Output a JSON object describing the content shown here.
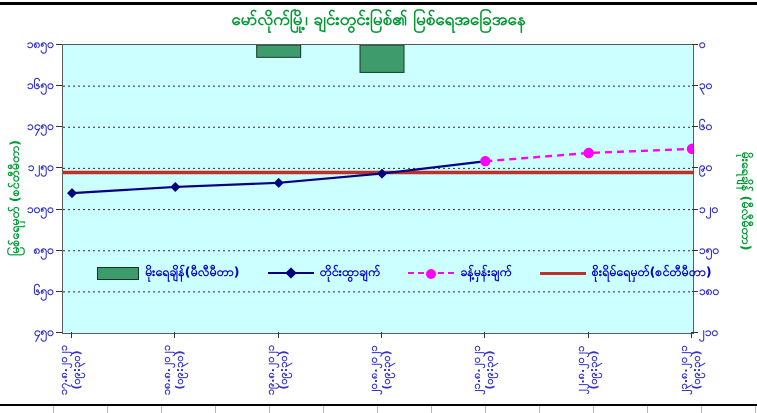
{
  "title": "မော်လိုက်မြို့၊ ချင်းတွင်းမြစ်၏ မြစ်ရေအခြေအနေ",
  "colors": {
    "title_green": "#009933",
    "axis_text_blue": "#3333CC",
    "legend_text_blue": "#0000CC",
    "plot_bg": "#CCFFFF",
    "grid": "#2e2e2e",
    "measured_navy": "#000080",
    "forecast_magenta": "#FF00FF",
    "danger_red": "#C03028",
    "rain_green": "#3E9B6B",
    "axis_line": "#5a5a5a"
  },
  "legend": [
    {
      "id": "rainfall",
      "label": "မိုးရေချိန်(မီလီမီတာ)",
      "swatch": "bar"
    },
    {
      "id": "measured",
      "label": "တိုင်းထွာချက်",
      "swatch": "line-diamond"
    },
    {
      "id": "forecast",
      "label": "ခန့်မှန်းချက်",
      "swatch": "dash-circle"
    },
    {
      "id": "danger",
      "label": "စိုးရိမ်ရေမှတ်(စင်တီမီတာ)",
      "swatch": "line"
    }
  ],
  "chart_data": {
    "type": "combo",
    "title": "မော်လိုက်မြို့၊ ချင်းတွင်းမြစ်၏ မြစ်ရေအခြေအနေ",
    "categories": [
      "17.8.2021 (09:30)",
      "18.8.2021 (09:30)",
      "19.8.2021 (09:30)",
      "20.8.2021 (09:30)",
      "21.8.2021 (09:30)",
      "22.8.2021 (09:30)",
      "23.8.2021 (09:30)"
    ],
    "categories_display": [
      {
        "date": "၁၇.၈.၂၀၂၁",
        "time": "(၀၉:၃၀)"
      },
      {
        "date": "၁၈.၈.၂၀၂၁",
        "time": "(၀၉:၃၀)"
      },
      {
        "date": "၁၉.၈.၂၀၂၁",
        "time": "(၀၉:၃၀)"
      },
      {
        "date": "၂၀.၈.၂၀၂၁",
        "time": "(၀၉:၃၀)"
      },
      {
        "date": "၂၁.၈.၂၀၂၁",
        "time": "(၀၉:၃၀)"
      },
      {
        "date": "၂၂.၈.၂၀၂၁",
        "time": "(၀၉:၃၀)"
      },
      {
        "date": "၂၃.၈.၂၀၂၁",
        "time": "(၀၉:၃၀)"
      }
    ],
    "left_axis": {
      "label": "မြစ်ရေမှတ် (စင်တီမီတာ)",
      "min": 450,
      "max": 1850,
      "step": 200,
      "tick_values": [
        1850,
        1650,
        1450,
        1250,
        1050,
        850,
        650,
        450
      ],
      "tick_labels": [
        "၁၈၅၀",
        "၁၆၅၀",
        "၁၄၅၀",
        "၁၂၅၀",
        "၁၀၅၀",
        "၈၅၀",
        "၆၅၀",
        "၄၅၀"
      ],
      "grid": "dashed"
    },
    "right_axis": {
      "label": "မိုးရေချိန် (မီလီမီတာ)",
      "min": 0,
      "max": 210,
      "step": 30,
      "direction": "down",
      "tick_values": [
        0,
        30,
        60,
        90,
        120,
        150,
        180,
        210
      ],
      "tick_labels": [
        "၀",
        "၃၀",
        "၆၀",
        "၉၀",
        "၁၂၀",
        "၁၅၀",
        "၁၈၀",
        "၂၁၀"
      ]
    },
    "series": [
      {
        "id": "rainfall",
        "name": "မိုးရေချိန်(မီလီမီတာ)",
        "type": "bar",
        "axis": "right",
        "unit": "mm",
        "values": [
          null,
          null,
          9,
          20,
          null,
          null,
          null
        ]
      },
      {
        "id": "measured",
        "name": "တိုင်းထွာချက်",
        "type": "line",
        "axis": "left",
        "unit": "cm",
        "marker": "diamond",
        "solid_bridge_to_forecast": true,
        "values": [
          1130,
          1160,
          1180,
          1225,
          null,
          null,
          null
        ]
      },
      {
        "id": "forecast",
        "name": "ခန့်မှန်းချက်",
        "type": "line",
        "axis": "left",
        "unit": "cm",
        "marker": "circle",
        "dashed": true,
        "values": [
          null,
          null,
          null,
          null,
          1285,
          1325,
          1345
        ]
      },
      {
        "id": "danger",
        "name": "စိုးရိမ်ရေမှတ်(စင်တီမီတာ)",
        "type": "hline",
        "axis": "left",
        "unit": "cm",
        "value": 1230
      }
    ],
    "legend_position": "bottom-inside"
  }
}
